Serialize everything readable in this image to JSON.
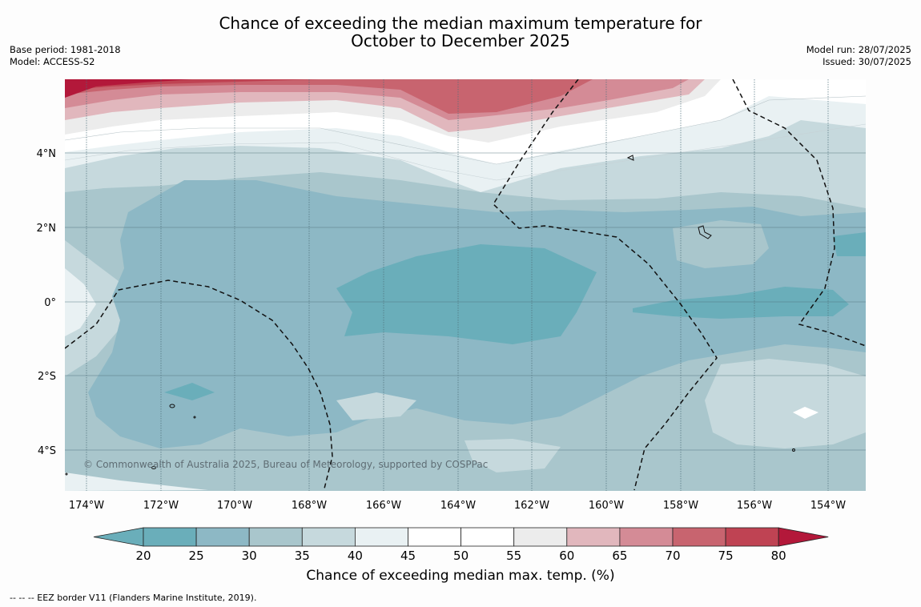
{
  "title_line1": "Chance of exceeding the median maximum temperature for",
  "title_line2": "October to December 2025",
  "base_period": "Base period: 1981-2018",
  "model": "Model: ACCESS-S2",
  "model_run": "Model run: 28/07/2025",
  "issued": "Issued: 30/07/2025",
  "lat_labels": [
    "4°N",
    "2°N",
    "0°",
    "2°S",
    "4°S"
  ],
  "lon_labels": [
    "174°W",
    "172°W",
    "170°W",
    "168°W",
    "166°W",
    "164°W",
    "162°W",
    "160°W",
    "158°W",
    "156°W",
    "154°W"
  ],
  "colorbar": {
    "ticks": [
      "20",
      "25",
      "30",
      "35",
      "40",
      "45",
      "50",
      "55",
      "60",
      "65",
      "70",
      "75",
      "80"
    ],
    "colors": [
      "#6aaeba",
      "#8db8c5",
      "#a9c6cc",
      "#c6d9dd",
      "#e9f1f3",
      "#ffffff",
      "#ffffff",
      "#ececec",
      "#e1b7bd",
      "#d48b96",
      "#c8646f",
      "#bf4353",
      "#b3183a"
    ],
    "label": "Chance of exceeding median max. temp. (%)"
  },
  "copyright": "© Commonwealth of Australia 2025, Bureau of Meteorology, supported by COSPPac",
  "footer_legend": "--  --  -- EEZ border V11 (Flanders Marine Institute, 2019)."
}
